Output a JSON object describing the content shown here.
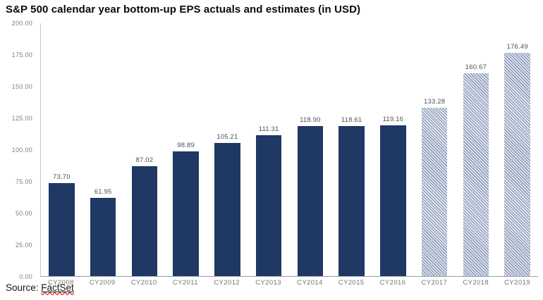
{
  "title": "S&P 500 calendar year bottom-up EPS actuals and estimates (in USD)",
  "source": {
    "prefix": "Source: ",
    "name": "FactSet"
  },
  "chart_data": {
    "type": "bar",
    "title": "S&P 500 calendar year bottom-up EPS actuals and estimates (in USD)",
    "categories": [
      "CY2008",
      "CY2009",
      "CY2010",
      "CY2011",
      "CY2012",
      "CY2013",
      "CY2014",
      "CY2015",
      "CY2016",
      "CY2017",
      "CY2018",
      "CY2019"
    ],
    "values": [
      73.7,
      61.95,
      87.02,
      98.89,
      105.21,
      111.31,
      118.9,
      118.61,
      119.16,
      133.28,
      160.67,
      176.49
    ],
    "value_labels": [
      "73.70",
      "61.95",
      "87.02",
      "98.89",
      "105.21",
      "111.31",
      "118.90",
      "118.61",
      "119.16",
      "133.28",
      "160.67",
      "176.49"
    ],
    "kinds": [
      "actual",
      "actual",
      "actual",
      "actual",
      "actual",
      "actual",
      "actual",
      "actual",
      "actual",
      "estimate",
      "estimate",
      "estimate"
    ],
    "xlabel": "",
    "ylabel": "",
    "ylim": [
      0,
      200
    ],
    "ytick_labels": [
      "0.00",
      "25.00",
      "50.00",
      "75.00",
      "100.00",
      "125.00",
      "150.00",
      "175.00",
      "200.00"
    ],
    "grid": false,
    "legend": "none",
    "colors": {
      "actual_bar": "#1f3864",
      "estimate_hatch_fg": "#8d9cba",
      "estimate_hatch_bg": "#edeff4"
    },
    "series_note": "solid bars = actuals (CY2008-CY2016), hatched bars = estimates (CY2017-CY2019)"
  }
}
